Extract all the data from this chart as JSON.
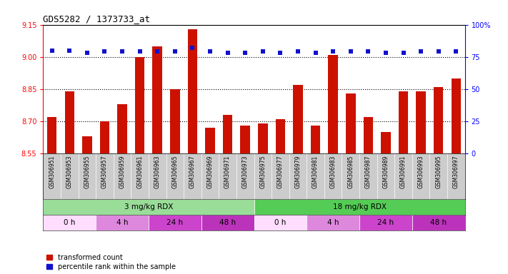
{
  "title": "GDS5282 / 1373733_at",
  "samples": [
    "GSM306951",
    "GSM306953",
    "GSM306955",
    "GSM306957",
    "GSM306959",
    "GSM306961",
    "GSM306963",
    "GSM306965",
    "GSM306967",
    "GSM306969",
    "GSM306971",
    "GSM306973",
    "GSM306975",
    "GSM306977",
    "GSM306979",
    "GSM306981",
    "GSM306983",
    "GSM306985",
    "GSM306987",
    "GSM306989",
    "GSM306991",
    "GSM306993",
    "GSM306995",
    "GSM306997"
  ],
  "bar_values": [
    8.72,
    8.84,
    8.63,
    8.7,
    8.78,
    9.0,
    9.05,
    8.85,
    9.13,
    8.67,
    8.73,
    8.68,
    8.69,
    8.71,
    8.87,
    8.68,
    9.01,
    8.83,
    8.72,
    8.65,
    8.84,
    8.84,
    8.86,
    8.9
  ],
  "percentile_values": [
    80,
    80,
    78,
    79,
    79,
    79,
    79,
    79,
    82,
    79,
    78,
    78,
    79,
    78,
    79,
    78,
    79,
    79,
    79,
    78,
    78,
    79,
    79,
    79
  ],
  "ylim_left": [
    8.55,
    9.15
  ],
  "ylim_right": [
    0,
    100
  ],
  "yticks_left": [
    8.55,
    8.7,
    8.85,
    9.0,
    9.15
  ],
  "yticks_right": [
    0,
    25,
    50,
    75,
    100
  ],
  "hlines": [
    8.7,
    8.85,
    9.0
  ],
  "bar_color": "#cc1100",
  "dot_color": "#1111cc",
  "xticklabel_bg": "#cccccc",
  "dose_segments": [
    {
      "label": "3 mg/kg RDX",
      "start": 0,
      "end": 12,
      "color": "#99dd99"
    },
    {
      "label": "18 mg/kg RDX",
      "start": 12,
      "end": 24,
      "color": "#55cc55"
    }
  ],
  "time_groups": [
    {
      "label": "0 h",
      "start": 0,
      "end": 3,
      "color": "#ffddff"
    },
    {
      "label": "4 h",
      "start": 3,
      "end": 6,
      "color": "#dd88dd"
    },
    {
      "label": "24 h",
      "start": 6,
      "end": 9,
      "color": "#cc44cc"
    },
    {
      "label": "48 h",
      "start": 9,
      "end": 12,
      "color": "#bb33bb"
    },
    {
      "label": "0 h",
      "start": 12,
      "end": 15,
      "color": "#ffddff"
    },
    {
      "label": "4 h",
      "start": 15,
      "end": 18,
      "color": "#dd88dd"
    },
    {
      "label": "24 h",
      "start": 18,
      "end": 21,
      "color": "#cc44cc"
    },
    {
      "label": "48 h",
      "start": 21,
      "end": 24,
      "color": "#bb33bb"
    }
  ],
  "legend_items": [
    {
      "label": "transformed count",
      "color": "#cc1100",
      "marker": "s"
    },
    {
      "label": "percentile rank within the sample",
      "color": "#1111cc",
      "marker": "s"
    }
  ],
  "background_color": "#ffffff"
}
